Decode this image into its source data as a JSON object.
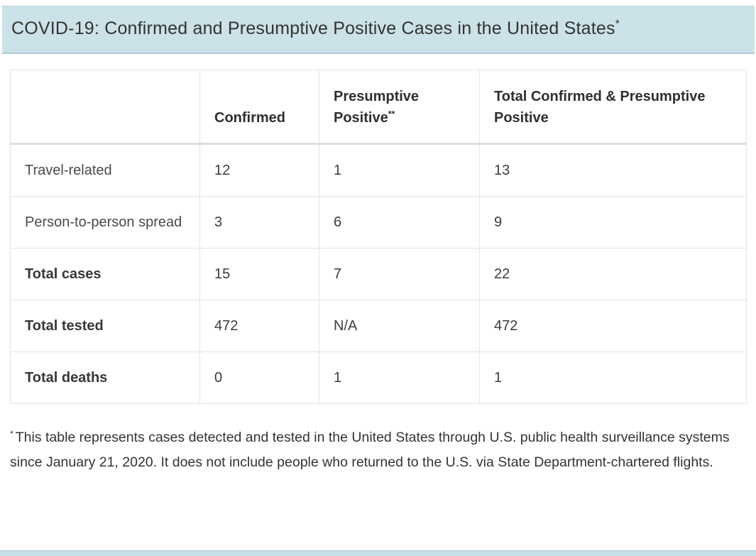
{
  "header": {
    "title": "COVID-19: Confirmed and Presumptive Positive Cases in the United States",
    "title_marker": "*"
  },
  "table": {
    "columns": [
      {
        "label": "",
        "marker": ""
      },
      {
        "label": "Confirmed",
        "marker": ""
      },
      {
        "label": "Presumptive Positive",
        "marker": "**"
      },
      {
        "label": "Total Confirmed & Presumptive Positive",
        "marker": ""
      }
    ],
    "rows": [
      {
        "label": "Travel-related",
        "values": [
          "12",
          "1",
          "13"
        ]
      },
      {
        "label": "Person-to-person spread",
        "values": [
          "3",
          "6",
          "9"
        ]
      },
      {
        "label": "Total cases",
        "values": [
          "15",
          "7",
          "22"
        ]
      },
      {
        "label": "Total tested",
        "values": [
          "472",
          "N/A",
          "472"
        ]
      },
      {
        "label": "Total deaths",
        "values": [
          "0",
          "1",
          "1"
        ]
      }
    ]
  },
  "footnote": {
    "marker": "*",
    "text": "This table represents cases detected and tested in the United States through U.S. public health surveillance systems since January 21, 2020. It does not include people who returned to the U.S. via State Department-chartered flights."
  },
  "colors": {
    "header_background": "#cbe2e8",
    "header_border": "#b3ccd3",
    "table_border": "#e1e4e5",
    "body_text": "#333333"
  },
  "chart_data": {
    "type": "table",
    "title": "COVID-19: Confirmed and Presumptive Positive Cases in the United States",
    "columns": [
      "",
      "Confirmed",
      "Presumptive Positive**",
      "Total Confirmed & Presumptive Positive"
    ],
    "rows": [
      [
        "Travel-related",
        12,
        1,
        13
      ],
      [
        "Person-to-person spread",
        3,
        6,
        9
      ],
      [
        "Total cases",
        15,
        7,
        22
      ],
      [
        "Total tested",
        472,
        "N/A",
        472
      ],
      [
        "Total deaths",
        0,
        1,
        1
      ]
    ]
  }
}
